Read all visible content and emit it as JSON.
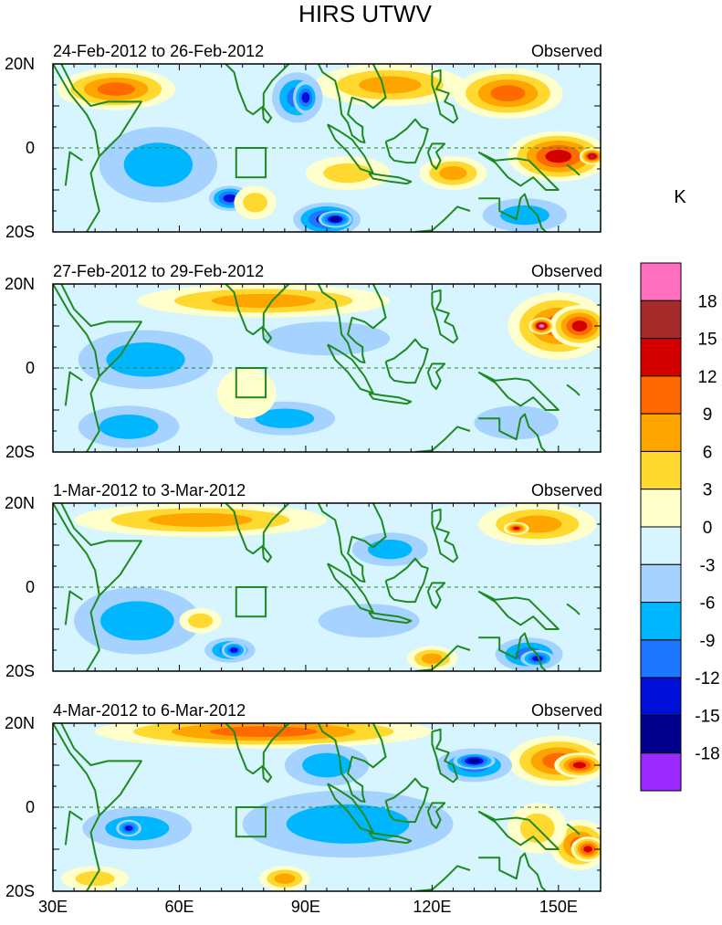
{
  "title": "HIRS UTWV",
  "chart_data": {
    "type": "heatmap",
    "title": "HIRS UTWV",
    "units": "K",
    "x_ticks": [
      "30E",
      "60E",
      "90E",
      "120E",
      "150E"
    ],
    "x_tick_values": [
      30,
      60,
      90,
      120,
      150
    ],
    "y_ticks": [
      "20N",
      "0",
      "20S"
    ],
    "y_tick_values": [
      20,
      0,
      -20
    ],
    "xlim": [
      30,
      160
    ],
    "ylim": [
      -20,
      20
    ],
    "colorbar": {
      "labels": [
        "18",
        "15",
        "12",
        "9",
        "6",
        "3",
        "0",
        "-3",
        "-6",
        "-9",
        "-12",
        "-15",
        "-18"
      ],
      "colors": [
        "#ff6ebf",
        "#a52a2a",
        "#d40000",
        "#ff6a00",
        "#ffa500",
        "#ffd92f",
        "#ffffcc",
        "#d6f5ff",
        "#a6d2ff",
        "#00b7ff",
        "#1e78ff",
        "#0010d8",
        "#00008b",
        "#9a28ff"
      ]
    },
    "panels": [
      {
        "period": "24-Feb-2012 to 26-Feb-2012",
        "label": "Observed",
        "blobs": [
          {
            "lon": 45,
            "lat": 14,
            "rx": 14,
            "ry": 5,
            "v": 9
          },
          {
            "lon": 110,
            "lat": 15,
            "rx": 18,
            "ry": 5,
            "v": 7
          },
          {
            "lon": 138,
            "lat": 13,
            "rx": 13,
            "ry": 6,
            "v": 10
          },
          {
            "lon": 150,
            "lat": -2,
            "rx": 12,
            "ry": 6,
            "v": 12
          },
          {
            "lon": 158,
            "lat": -2,
            "rx": 3,
            "ry": 2,
            "v": 15
          },
          {
            "lon": 125,
            "lat": -6,
            "rx": 8,
            "ry": 4,
            "v": 6
          },
          {
            "lon": 100,
            "lat": -6,
            "rx": 10,
            "ry": 4,
            "v": 4
          },
          {
            "lon": 55,
            "lat": -4,
            "rx": 14,
            "ry": 9,
            "v": -7
          },
          {
            "lon": 88,
            "lat": 12,
            "rx": 6,
            "ry": 6,
            "v": -9
          },
          {
            "lon": 90,
            "lat": 12,
            "rx": 3,
            "ry": 4,
            "v": -14
          },
          {
            "lon": 95,
            "lat": -17,
            "rx": 8,
            "ry": 4,
            "v": -12
          },
          {
            "lon": 97,
            "lat": -17,
            "rx": 4,
            "ry": 2,
            "v": -16
          },
          {
            "lon": 72,
            "lat": -12,
            "rx": 5,
            "ry": 3,
            "v": -12
          },
          {
            "lon": 142,
            "lat": -16,
            "rx": 10,
            "ry": 4,
            "v": -7
          },
          {
            "lon": 78,
            "lat": -13,
            "rx": 5,
            "ry": 4,
            "v": 5
          }
        ]
      },
      {
        "period": "27-Feb-2012 to 29-Feb-2012",
        "label": "Observed",
        "blobs": [
          {
            "lon": 80,
            "lat": 16,
            "rx": 30,
            "ry": 4,
            "v": 7
          },
          {
            "lon": 150,
            "lat": 10,
            "rx": 12,
            "ry": 8,
            "v": 11
          },
          {
            "lon": 155,
            "lat": 10,
            "rx": 7,
            "ry": 5,
            "v": 14
          },
          {
            "lon": 146,
            "lat": 10,
            "rx": 3,
            "ry": 2,
            "v": 18
          },
          {
            "lon": 52,
            "lat": 2,
            "rx": 16,
            "ry": 7,
            "v": -8
          },
          {
            "lon": 48,
            "lat": -14,
            "rx": 12,
            "ry": 5,
            "v": -7
          },
          {
            "lon": 85,
            "lat": -12,
            "rx": 12,
            "ry": 4,
            "v": -6
          },
          {
            "lon": 95,
            "lat": 7,
            "rx": 15,
            "ry": 4,
            "v": -5
          },
          {
            "lon": 140,
            "lat": -13,
            "rx": 10,
            "ry": 4,
            "v": -5
          },
          {
            "lon": 76,
            "lat": -6,
            "rx": 7,
            "ry": 6,
            "v": 2
          }
        ]
      },
      {
        "period": "1-Mar-2012 to 3-Mar-2012",
        "label": "Observed",
        "blobs": [
          {
            "lon": 65,
            "lat": 16,
            "rx": 30,
            "ry": 4,
            "v": 7
          },
          {
            "lon": 145,
            "lat": 15,
            "rx": 14,
            "ry": 5,
            "v": 8
          },
          {
            "lon": 140,
            "lat": 14,
            "rx": 3,
            "ry": 1.5,
            "v": 13
          },
          {
            "lon": 50,
            "lat": -8,
            "rx": 15,
            "ry": 8,
            "v": -7
          },
          {
            "lon": 72,
            "lat": -15,
            "rx": 6,
            "ry": 3,
            "v": -11
          },
          {
            "lon": 73,
            "lat": -15,
            "rx": 3,
            "ry": 2,
            "v": -14
          },
          {
            "lon": 110,
            "lat": 9,
            "rx": 9,
            "ry": 4,
            "v": -8
          },
          {
            "lon": 105,
            "lat": -8,
            "rx": 12,
            "ry": 4,
            "v": -5
          },
          {
            "lon": 143,
            "lat": -16,
            "rx": 8,
            "ry": 4,
            "v": -9
          },
          {
            "lon": 145,
            "lat": -17,
            "rx": 4,
            "ry": 2,
            "v": -12
          },
          {
            "lon": 120,
            "lat": -17,
            "rx": 6,
            "ry": 3,
            "v": 6
          },
          {
            "lon": 65,
            "lat": -8,
            "rx": 5,
            "ry": 3,
            "v": 4
          }
        ]
      },
      {
        "period": "4-Mar-2012 to 6-Mar-2012",
        "label": "Observed",
        "blobs": [
          {
            "lon": 80,
            "lat": 18,
            "rx": 40,
            "ry": 4,
            "v": 9
          },
          {
            "lon": 150,
            "lat": 11,
            "rx": 12,
            "ry": 6,
            "v": 10
          },
          {
            "lon": 155,
            "lat": 10,
            "rx": 6,
            "ry": 3,
            "v": 13
          },
          {
            "lon": 155,
            "lat": -9,
            "rx": 7,
            "ry": 6,
            "v": 9
          },
          {
            "lon": 157,
            "lat": -10,
            "rx": 4,
            "ry": 3,
            "v": 13
          },
          {
            "lon": 130,
            "lat": 10,
            "rx": 9,
            "ry": 4,
            "v": -11
          },
          {
            "lon": 130,
            "lat": 11,
            "rx": 5,
            "ry": 2,
            "v": -15
          },
          {
            "lon": 50,
            "lat": -5,
            "rx": 13,
            "ry": 5,
            "v": -8
          },
          {
            "lon": 48,
            "lat": -5,
            "rx": 3,
            "ry": 2,
            "v": -14
          },
          {
            "lon": 100,
            "lat": -4,
            "rx": 25,
            "ry": 8,
            "v": -6
          },
          {
            "lon": 95,
            "lat": 10,
            "rx": 10,
            "ry": 5,
            "v": -6
          },
          {
            "lon": 145,
            "lat": -5,
            "rx": 7,
            "ry": 6,
            "v": 3
          },
          {
            "lon": 85,
            "lat": -17,
            "rx": 6,
            "ry": 3,
            "v": 6
          },
          {
            "lon": 40,
            "lat": -17,
            "rx": 8,
            "ry": 3,
            "v": 4
          }
        ]
      }
    ]
  }
}
